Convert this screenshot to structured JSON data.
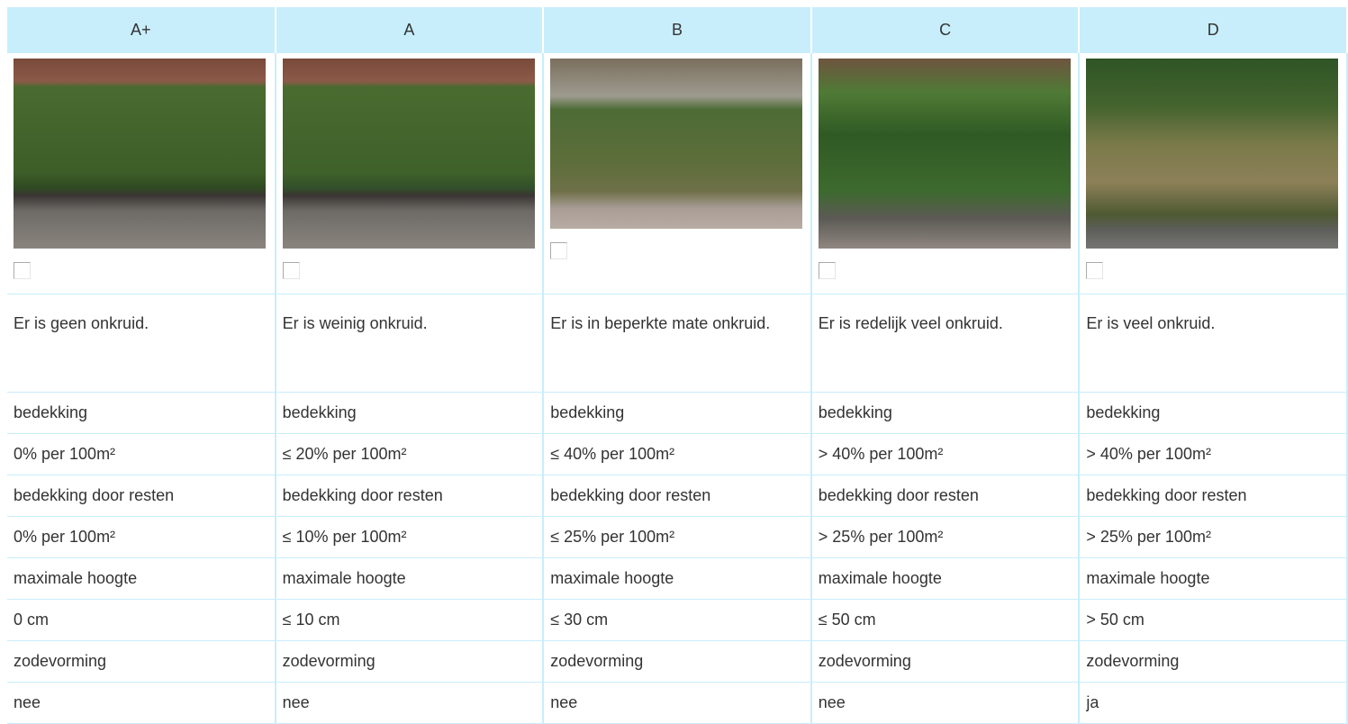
{
  "table": {
    "header": [
      "A+",
      "A",
      "B",
      "C",
      "D"
    ],
    "rows": [
      [
        "Er is geen onkruid.",
        "Er is weinig onkruid.",
        "Er is in beperkte mate onkruid.",
        "Er is redelijk veel onkruid.",
        "Er is veel onkruid."
      ],
      [
        "bedekking",
        "bedekking",
        "bedekking",
        "bedekking",
        "bedekking"
      ],
      [
        "0% per 100m²",
        "≤ 20% per 100m²",
        "≤ 40% per 100m²",
        "> 40% per 100m²",
        "> 40% per 100m²"
      ],
      [
        "bedekking door resten",
        "bedekking door resten",
        "bedekking door resten",
        "bedekking door resten",
        "bedekking door resten"
      ],
      [
        "0% per 100m²",
        "≤ 10% per 100m²",
        "≤ 25% per 100m²",
        "> 25% per 100m²",
        "> 25% per 100m²"
      ],
      [
        "maximale hoogte",
        "maximale hoogte",
        "maximale hoogte",
        "maximale hoogte",
        "maximale hoogte"
      ],
      [
        "0 cm",
        "≤ 10 cm",
        "≤ 30 cm",
        "≤ 50 cm",
        "> 50 cm"
      ],
      [
        "zodevorming",
        "zodevorming",
        "zodevorming",
        "zodevorming",
        "zodevorming"
      ],
      [
        "nee",
        "nee",
        "nee",
        "nee",
        "ja"
      ]
    ]
  }
}
